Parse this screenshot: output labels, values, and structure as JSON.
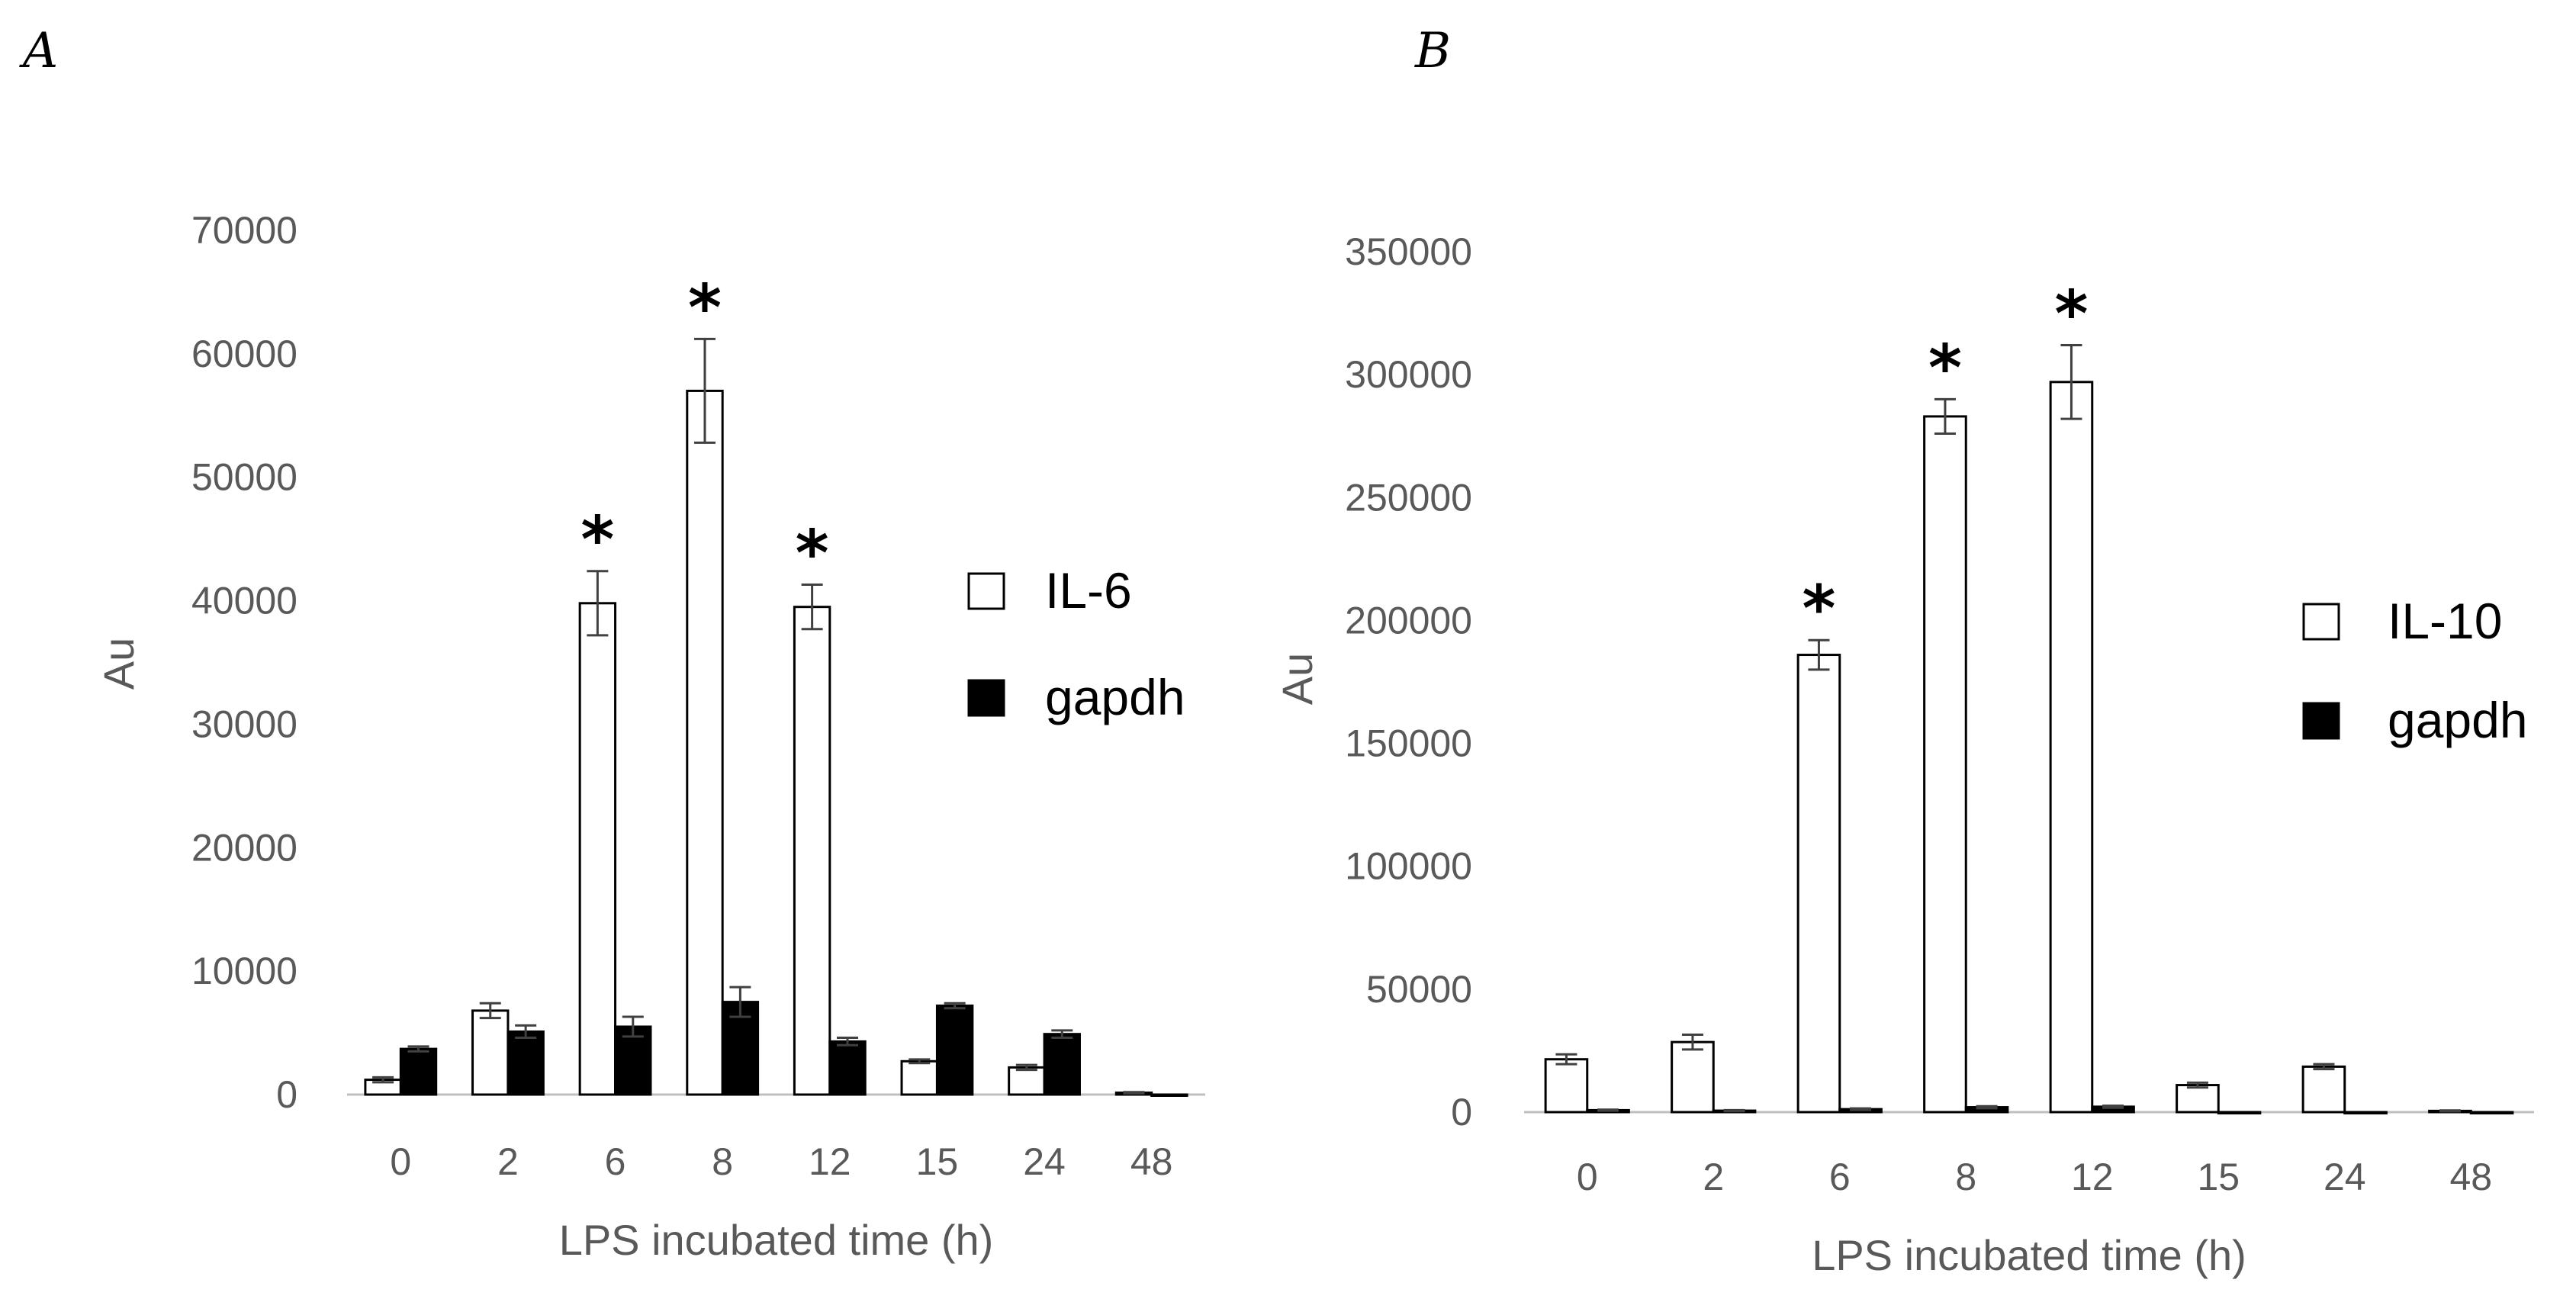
{
  "chart_data": [
    {
      "panel": "A",
      "type": "bar",
      "xlabel": "LPS incubated time (h)",
      "ylabel": "Au",
      "ylim": [
        0,
        70000
      ],
      "yticks": [
        "0",
        "10000",
        "20000",
        "30000",
        "40000",
        "50000",
        "60000",
        "70000"
      ],
      "categories": [
        "0",
        "2",
        "6",
        "8",
        "12",
        "15",
        "24",
        "48"
      ],
      "grid": false,
      "legend_position": "right",
      "series": [
        {
          "name": "IL-6",
          "fill": "#ffffff",
          "stroke": "#000000",
          "values": [
            1200,
            6800,
            39800,
            57000,
            39500,
            2700,
            2200,
            150
          ],
          "errors": [
            200,
            600,
            2600,
            4200,
            1800,
            150,
            200,
            50
          ]
        },
        {
          "name": "gapdh",
          "fill": "#000000",
          "stroke": "#000000",
          "values": [
            3700,
            5100,
            5500,
            7500,
            4300,
            7200,
            4900,
            0
          ],
          "errors": [
            200,
            500,
            800,
            1200,
            300,
            200,
            300,
            0
          ]
        }
      ],
      "annotations": [
        {
          "category": "6",
          "text": "*"
        },
        {
          "category": "8",
          "text": "*"
        },
        {
          "category": "12",
          "text": "*"
        }
      ]
    },
    {
      "panel": "B",
      "type": "bar",
      "xlabel": "LPS incubated time (h)",
      "ylabel": "Au",
      "ylim": [
        0,
        350000
      ],
      "yticks": [
        "0",
        "50000",
        "100000",
        "150000",
        "200000",
        "250000",
        "300000",
        "350000"
      ],
      "categories": [
        "0",
        "2",
        "6",
        "8",
        "12",
        "15",
        "24",
        "48"
      ],
      "grid": false,
      "legend_position": "right",
      "series": [
        {
          "name": "IL-10",
          "fill": "#ffffff",
          "stroke": "#000000",
          "values": [
            21500,
            28500,
            186000,
            283000,
            297000,
            11000,
            18500,
            500
          ],
          "errors": [
            2000,
            3000,
            6000,
            7000,
            15000,
            1000,
            1000,
            200
          ]
        },
        {
          "name": "gapdh",
          "fill": "#000000",
          "stroke": "#000000",
          "values": [
            800,
            600,
            1200,
            2000,
            2200,
            0,
            0,
            0
          ],
          "errors": [
            200,
            200,
            300,
            400,
            400,
            0,
            0,
            0
          ]
        }
      ],
      "annotations": [
        {
          "category": "6",
          "text": "*"
        },
        {
          "category": "8",
          "text": "*"
        },
        {
          "category": "12",
          "text": "*"
        }
      ]
    }
  ]
}
